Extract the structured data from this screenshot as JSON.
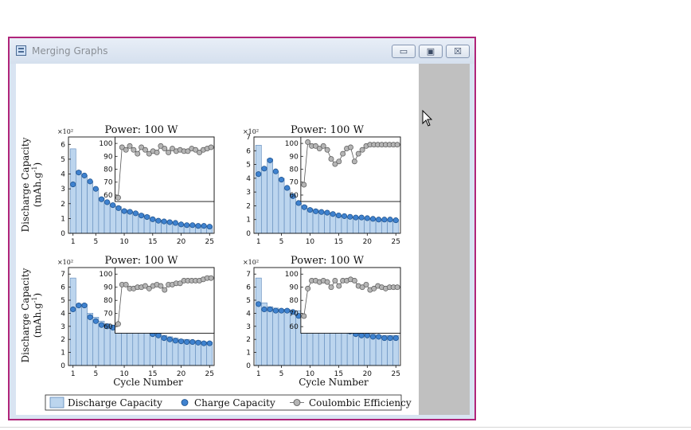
{
  "window": {
    "title": "Merging Graphs",
    "buttons": {
      "minimize": "▭",
      "restore": "▣",
      "close": "☒"
    }
  },
  "colors": {
    "discharge_fill": "#bcd5ee",
    "discharge_edge": "#5b86b8",
    "charge_fill": "#3f82cf",
    "charge_edge": "#1b4f8a",
    "ce_fill": "#b5b5b5",
    "ce_edge": "#555555"
  },
  "figure": {
    "ylabel_line1": "Discharge Capacity",
    "ylabel_line2_base": "(mAh.g",
    "ylabel_line2_sup": "-1",
    "ylabel_line2_end": ")",
    "xlabel": "Cycle Number",
    "legend": {
      "discharge": "Discharge Capacity",
      "charge": "Charge Capacity",
      "ce": "Coulombic Efficiency"
    }
  },
  "chart_data": [
    {
      "type": "bar",
      "title": "Power: 100 W",
      "multiplier_label": "×10²",
      "x": [
        1,
        2,
        3,
        4,
        5,
        6,
        7,
        8,
        9,
        10,
        11,
        12,
        13,
        14,
        15,
        16,
        17,
        18,
        19,
        20,
        21,
        22,
        23,
        24,
        25
      ],
      "xticks": [
        1,
        5,
        10,
        15,
        20,
        25
      ],
      "ylim": [
        0,
        6.5
      ],
      "yticks": [
        0,
        1,
        2,
        3,
        4,
        5,
        6
      ],
      "series": [
        {
          "name": "Discharge Capacity",
          "type": "bar",
          "values": [
            5.7,
            4.2,
            3.9,
            3.5,
            3.0,
            2.4,
            2.1,
            1.9,
            1.8,
            1.6,
            1.5,
            1.4,
            1.3,
            1.2,
            1.0,
            0.9,
            0.85,
            0.8,
            0.7,
            0.65,
            0.6,
            0.6,
            0.55,
            0.5,
            0.5
          ]
        },
        {
          "name": "Charge Capacity",
          "type": "scatter",
          "values": [
            3.3,
            4.1,
            3.9,
            3.5,
            3.0,
            2.3,
            2.1,
            1.9,
            1.7,
            1.5,
            1.45,
            1.35,
            1.2,
            1.1,
            0.95,
            0.85,
            0.8,
            0.75,
            0.7,
            0.6,
            0.55,
            0.55,
            0.5,
            0.5,
            0.45
          ]
        }
      ],
      "inset": {
        "type": "line",
        "ylim": [
          55,
          105
        ],
        "yticks": [
          60,
          70,
          80,
          90,
          100
        ],
        "values": [
          58,
          97,
          95,
          98,
          95,
          92,
          97,
          95,
          92,
          94,
          93,
          98,
          96,
          93,
          96,
          94,
          95,
          94,
          94,
          96,
          95,
          93,
          95,
          96,
          97
        ]
      }
    },
    {
      "type": "bar",
      "title": "Power: 100 W",
      "multiplier_label": "×10²",
      "x": [
        1,
        2,
        3,
        4,
        5,
        6,
        7,
        8,
        9,
        10,
        11,
        12,
        13,
        14,
        15,
        16,
        17,
        18,
        19,
        20,
        21,
        22,
        23,
        24,
        25
      ],
      "xticks": [
        1,
        5,
        10,
        15,
        20,
        25
      ],
      "ylim": [
        0,
        7
      ],
      "yticks": [
        0,
        1,
        2,
        3,
        4,
        5,
        6,
        7
      ],
      "series": [
        {
          "name": "Discharge Capacity",
          "type": "bar",
          "values": [
            6.4,
            4.8,
            5.4,
            4.5,
            4.0,
            3.3,
            2.8,
            2.2,
            2.0,
            1.8,
            1.7,
            1.6,
            1.5,
            1.4,
            1.3,
            1.2,
            1.2,
            1.2,
            1.1,
            1.1,
            1.1,
            1.0,
            1.0,
            1.0,
            1.0
          ]
        },
        {
          "name": "Charge Capacity",
          "type": "scatter",
          "values": [
            4.3,
            4.7,
            5.3,
            4.5,
            3.9,
            3.3,
            2.7,
            2.2,
            1.9,
            1.7,
            1.6,
            1.55,
            1.5,
            1.4,
            1.3,
            1.25,
            1.2,
            1.15,
            1.15,
            1.1,
            1.05,
            1.0,
            1.0,
            1.0,
            0.95
          ]
        }
      ],
      "inset": {
        "type": "line",
        "ylim": [
          55,
          105
        ],
        "yticks": [
          60,
          70,
          80,
          90,
          100
        ],
        "values": [
          68,
          101,
          98,
          98,
          96,
          98,
          95,
          88,
          84,
          86,
          92,
          96,
          97,
          86,
          92,
          95,
          98,
          99,
          99,
          99,
          99,
          99,
          99,
          99,
          99
        ]
      }
    },
    {
      "type": "bar",
      "title": "Power: 100 W",
      "multiplier_label": "×10²",
      "x": [
        1,
        2,
        3,
        4,
        5,
        6,
        7,
        8,
        9,
        10,
        11,
        12,
        13,
        14,
        15,
        16,
        17,
        18,
        19,
        20,
        21,
        22,
        23,
        24,
        25
      ],
      "xticks": [
        1,
        5,
        10,
        15,
        20,
        25
      ],
      "ylim": [
        0,
        7.5
      ],
      "yticks": [
        0,
        1,
        2,
        3,
        4,
        5,
        6,
        7
      ],
      "series": [
        {
          "name": "Discharge Capacity",
          "type": "bar",
          "values": [
            6.7,
            4.7,
            4.7,
            4.0,
            3.7,
            3.4,
            3.2,
            3.1,
            2.9,
            3.0,
            3.3,
            3.3,
            3.1,
            2.9,
            2.6,
            2.5,
            2.3,
            2.2,
            2.1,
            2.0,
            2.0,
            1.9,
            1.9,
            1.8,
            1.8
          ]
        },
        {
          "name": "Charge Capacity",
          "type": "scatter",
          "values": [
            4.3,
            4.6,
            4.6,
            3.7,
            3.4,
            3.1,
            3.0,
            2.9,
            2.8,
            2.9,
            3.2,
            3.1,
            2.9,
            2.7,
            2.4,
            2.3,
            2.1,
            2.0,
            1.9,
            1.85,
            1.8,
            1.8,
            1.75,
            1.7,
            1.7
          ]
        }
      ],
      "inset": {
        "type": "line",
        "ylim": [
          55,
          105
        ],
        "yticks": [
          60,
          70,
          80,
          90,
          100
        ],
        "values": [
          62,
          92,
          92,
          89,
          89,
          90,
          90,
          91,
          89,
          91,
          92,
          91,
          88,
          92,
          92,
          93,
          93,
          95,
          95,
          95,
          95,
          95,
          96,
          97,
          97
        ]
      }
    },
    {
      "type": "bar",
      "title": "Power: 100 W",
      "multiplier_label": "×10²",
      "x": [
        1,
        2,
        3,
        4,
        5,
        6,
        7,
        8,
        9,
        10,
        11,
        12,
        13,
        14,
        15,
        16,
        17,
        18,
        19,
        20,
        21,
        22,
        23,
        24,
        25
      ],
      "xticks": [
        1,
        5,
        10,
        15,
        20,
        25
      ],
      "ylim": [
        0,
        7.5
      ],
      "yticks": [
        0,
        1,
        2,
        3,
        4,
        5,
        6,
        7
      ],
      "series": [
        {
          "name": "Discharge Capacity",
          "type": "bar",
          "values": [
            6.7,
            4.8,
            4.5,
            4.4,
            4.3,
            4.3,
            4.2,
            4.2,
            4.0,
            3.7,
            3.4,
            3.3,
            3.2,
            3.1,
            3.0,
            2.8,
            2.7,
            2.5,
            2.5,
            2.4,
            2.4,
            2.3,
            2.3,
            2.3,
            2.3
          ]
        },
        {
          "name": "Charge Capacity",
          "type": "scatter",
          "values": [
            4.7,
            4.3,
            4.3,
            4.2,
            4.2,
            4.2,
            4.1,
            3.8,
            3.7,
            3.6,
            3.3,
            3.2,
            3.1,
            3.0,
            2.9,
            2.8,
            2.6,
            2.4,
            2.3,
            2.3,
            2.2,
            2.2,
            2.1,
            2.1,
            2.1
          ]
        }
      ],
      "inset": {
        "type": "line",
        "ylim": [
          55,
          105
        ],
        "yticks": [
          60,
          70,
          80,
          90,
          100
        ],
        "values": [
          68,
          89,
          95,
          95,
          94,
          95,
          94,
          90,
          95,
          91,
          95,
          95,
          96,
          95,
          91,
          90,
          92,
          88,
          89,
          91,
          90,
          89,
          90,
          90,
          90
        ]
      }
    }
  ]
}
